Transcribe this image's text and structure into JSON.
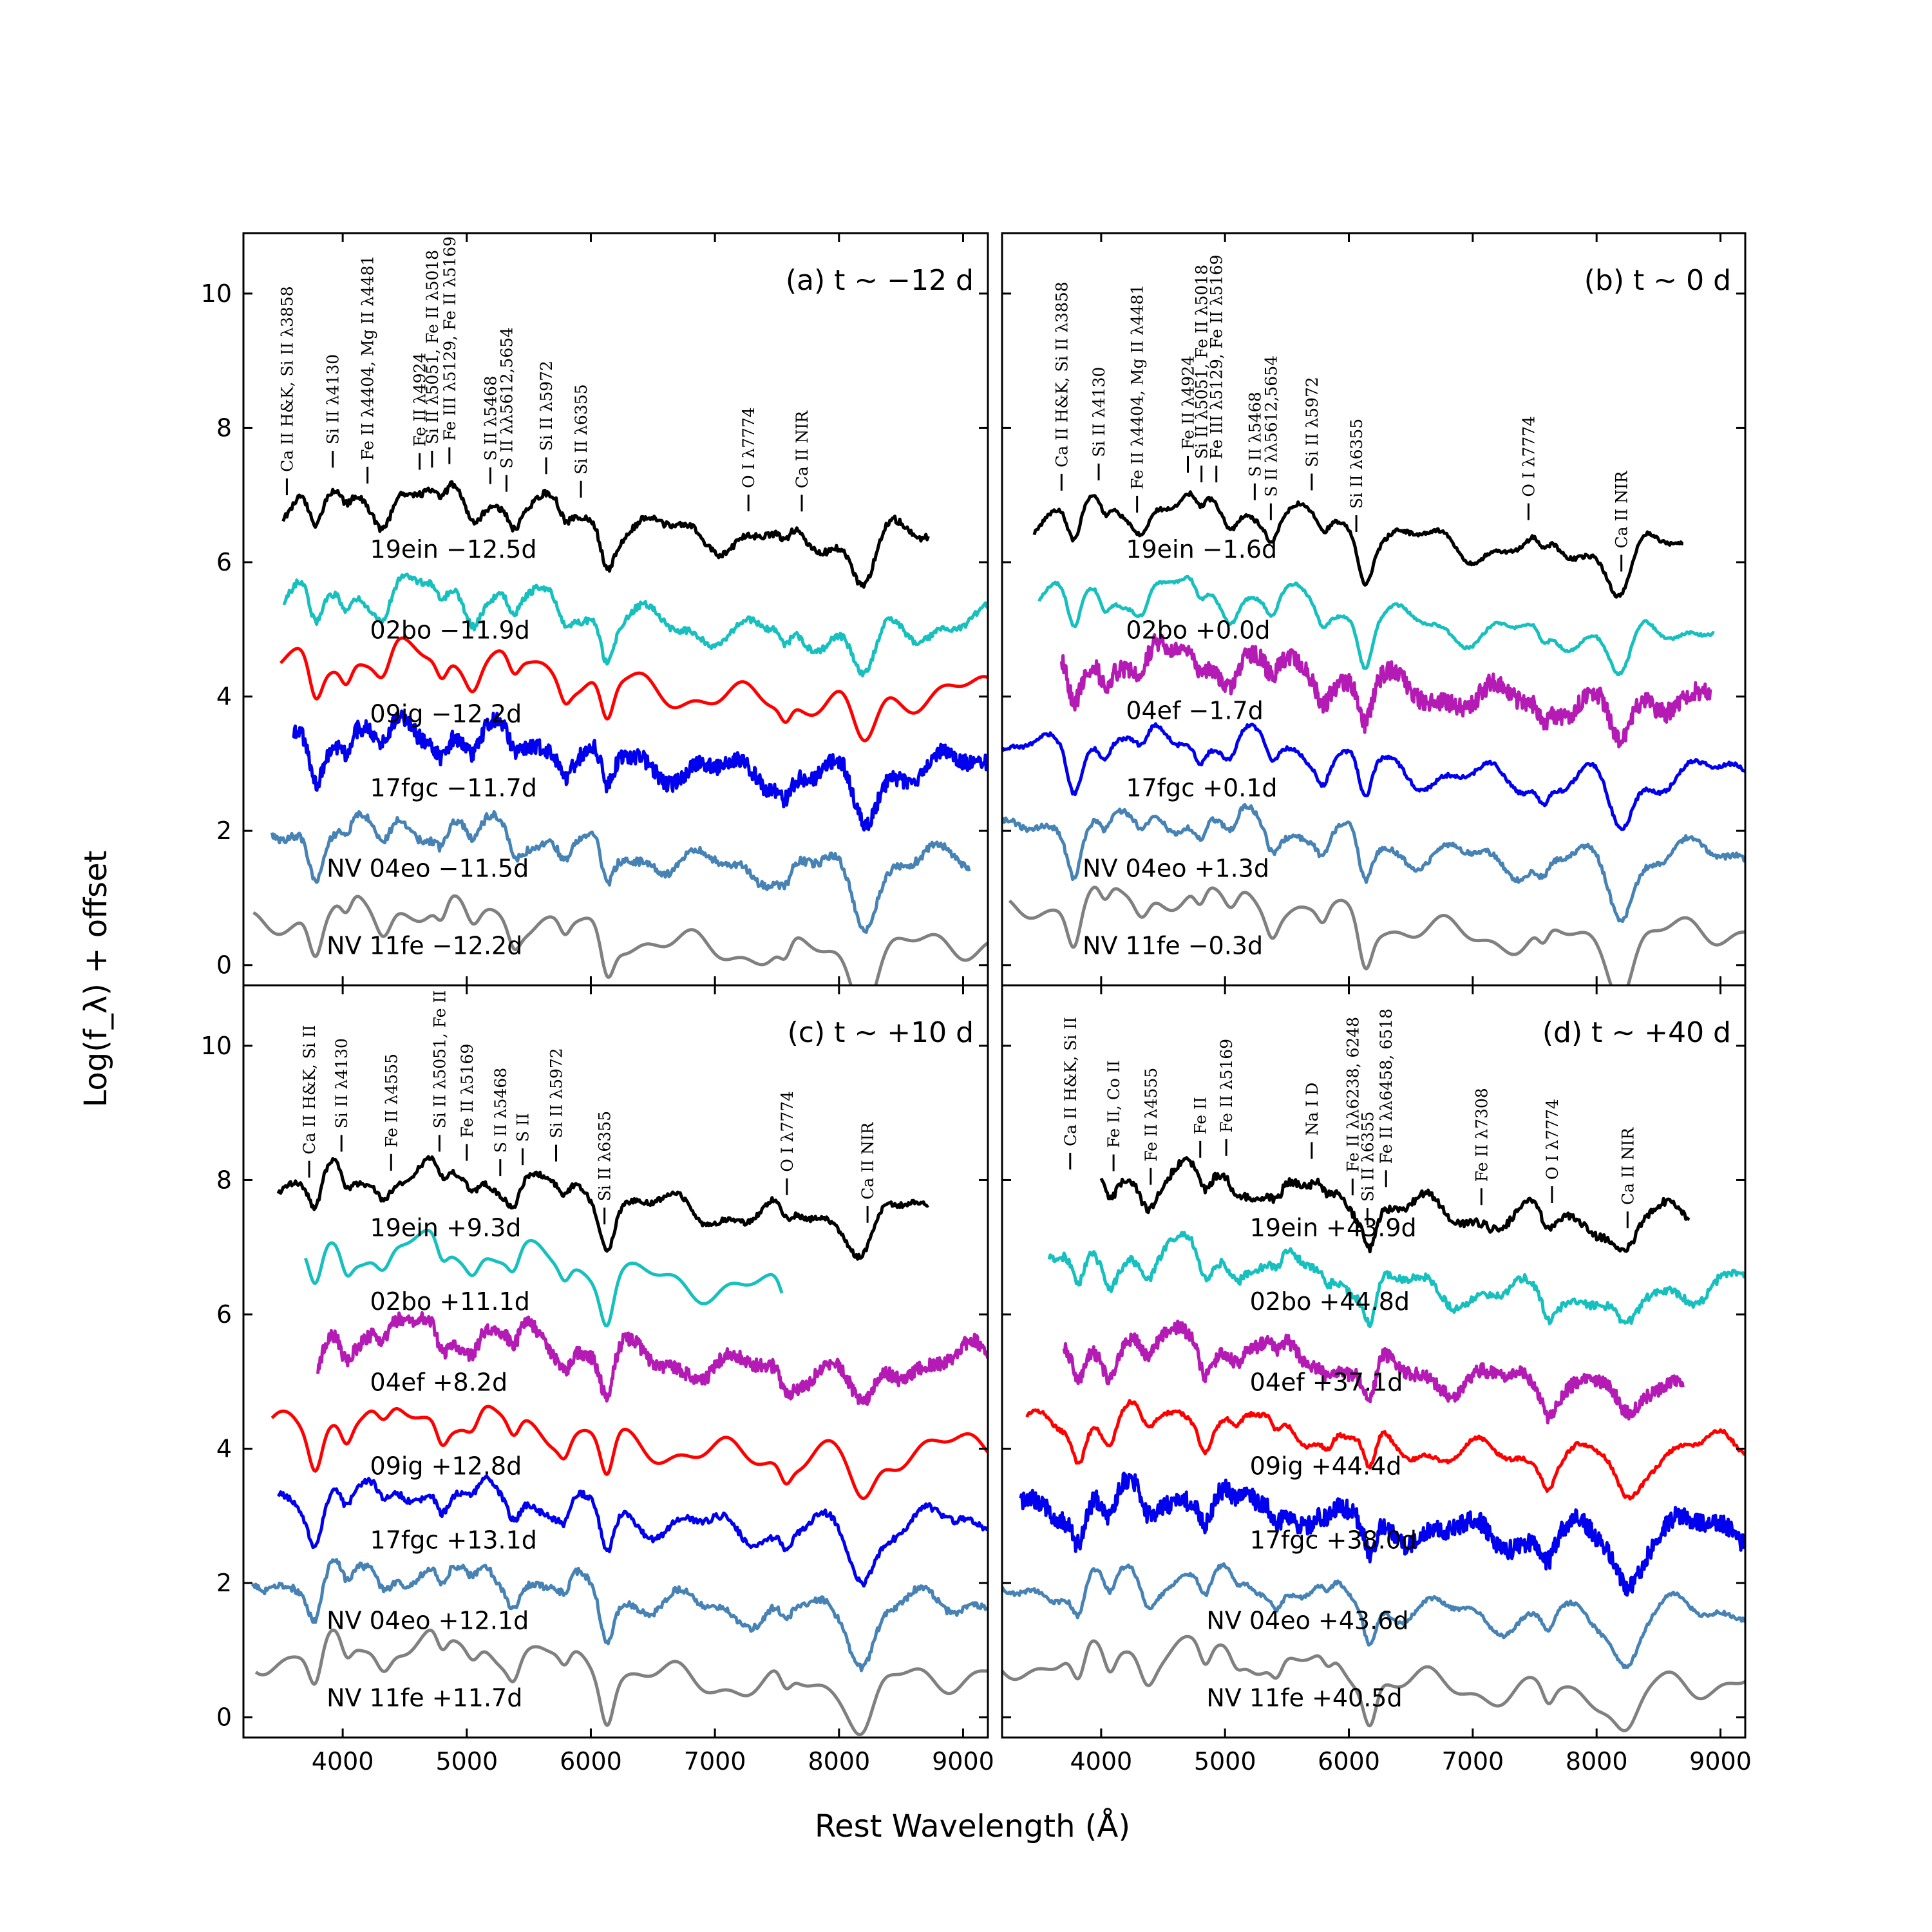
{
  "figure": {
    "ylabel": "Log(f_λ) + offset",
    "xlabel": "Rest Wavelength (Å)"
  },
  "chart_data": [
    {
      "type": "line",
      "title": "(a) t ∼ −12 d",
      "xlim": [
        3200,
        9200
      ],
      "ylim": [
        -0.3,
        10.9
      ],
      "xticks": [
        4000,
        5000,
        6000,
        7000,
        8000,
        9000
      ],
      "yticks": [
        0,
        2,
        4,
        6,
        8,
        10
      ],
      "series": [
        {
          "name": "19ein −12.5d",
          "color": "#000000",
          "xrange": [
            3520,
            8720
          ],
          "baseline": 6.7,
          "noise": 0.05,
          "label_pos": [
            4220,
            6.2
          ]
        },
        {
          "name": "02bo −11.9d",
          "color": "#17bfbf",
          "xrange": [
            3520,
            9200
          ],
          "baseline": 5.3,
          "noise": 0.05,
          "label_pos": [
            4220,
            5.0
          ]
        },
        {
          "name": "09ig −12.2d",
          "color": "#ff0000",
          "xrange": [
            3500,
            9200
          ],
          "baseline": 4.3,
          "noise": 0.0,
          "label_pos": [
            4220,
            3.75
          ]
        },
        {
          "name": "17fgc −11.7d",
          "color": "#0000ee",
          "xrange": [
            3600,
            9200
          ],
          "baseline": 3.2,
          "noise": 0.12,
          "label_pos": [
            4220,
            2.65
          ]
        },
        {
          "name": "NV 04eo −11.5d",
          "color": "#4682b4",
          "xrange": [
            3430,
            9050
          ],
          "baseline": 1.8,
          "noise": 0.06,
          "label_pos": [
            3870,
            1.45
          ]
        },
        {
          "name": "NV 11fe −12.2d",
          "color": "#808080",
          "xrange": [
            3280,
            9200
          ],
          "baseline": 0.55,
          "noise": 0.0,
          "label_pos": [
            3870,
            0.3
          ]
        }
      ],
      "line_marks": [
        {
          "label": "Ca II H&K, Si II λ3858",
          "x": 3550
        },
        {
          "label": "Si II λ4130",
          "x": 3920
        },
        {
          "label": "Fe II λ4404, Mg II λ4481",
          "x": 4200
        },
        {
          "label": "Fe II λ4924",
          "x": 4620
        },
        {
          "label": "Si II λ5051, Fe II λ5018",
          "x": 4720
        },
        {
          "label": "Fe III λ5129, Fe II λ5169",
          "x": 4860
        },
        {
          "label": "S II λ5468",
          "x": 5190
        },
        {
          "label": "S II λλ5612,5654",
          "x": 5320
        },
        {
          "label": "Si II λ5972",
          "x": 5640
        },
        {
          "label": "Si II λ6355",
          "x": 5920
        },
        {
          "label": "O I λ7774",
          "x": 7270
        },
        {
          "label": "Ca II NIR",
          "x": 7700
        }
      ]
    },
    {
      "type": "line",
      "title": "(b) t ∼ 0 d",
      "xlim": [
        3200,
        9200
      ],
      "ylim": [
        -0.3,
        10.9
      ],
      "xticks": [
        4000,
        5000,
        6000,
        7000,
        8000,
        9000
      ],
      "yticks": [
        0,
        2,
        4,
        6,
        8,
        10
      ],
      "series": [
        {
          "name": "19ein −1.6d",
          "color": "#000000",
          "xrange": [
            3460,
            8700
          ],
          "baseline": 6.55,
          "noise": 0.03,
          "label_pos": [
            4200,
            6.2
          ]
        },
        {
          "name": "02bo +0.0d",
          "color": "#17bfbf",
          "xrange": [
            3500,
            8950
          ],
          "baseline": 5.3,
          "noise": 0.02,
          "label_pos": [
            4200,
            5.0
          ]
        },
        {
          "name": "04ef −1.7d",
          "color": "#b41ab4",
          "xrange": [
            3680,
            8920
          ],
          "baseline": 4.3,
          "noise": 0.14,
          "label_pos": [
            4200,
            3.8
          ]
        },
        {
          "name": "17fgc +0.1d",
          "color": "#0000ee",
          "xrange": [
            3200,
            9200
          ],
          "baseline": 3.1,
          "noise": 0.03,
          "label_pos": [
            4200,
            2.65
          ]
        },
        {
          "name": "NV 04eo +1.3d",
          "color": "#4682b4",
          "xrange": [
            3200,
            9200
          ],
          "baseline": 1.9,
          "noise": 0.04,
          "label_pos": [
            3850,
            1.45
          ]
        },
        {
          "name": "NV 11fe −0.3d",
          "color": "#808080",
          "xrange": [
            3260,
            9200
          ],
          "baseline": 0.75,
          "noise": 0.0,
          "label_pos": [
            3850,
            0.3
          ]
        }
      ],
      "line_marks": [
        {
          "label": "Ca II H&K, Si II λ3858",
          "x": 3680
        },
        {
          "label": "Si II λ4130",
          "x": 3980
        },
        {
          "label": "Fe II λ4404, Mg II λ4481",
          "x": 4290
        },
        {
          "label": "Fe II λ4924",
          "x": 4700
        },
        {
          "label": "Si II λ5051, Fe II λ5018",
          "x": 4810
        },
        {
          "label": "Fe III λ5129, Fe II λ5169",
          "x": 4930
        },
        {
          "label": "S II λ5468",
          "x": 5240
        },
        {
          "label": "S II λλ5612,5654",
          "x": 5370
        },
        {
          "label": "Si II λ5972",
          "x": 5700
        },
        {
          "label": "Si II λ6355",
          "x": 6060
        },
        {
          "label": "O I λ7774",
          "x": 7450
        },
        {
          "label": "Ca II NIR",
          "x": 8200
        }
      ]
    },
    {
      "type": "line",
      "title": "(c) t ∼ +10 d",
      "xlim": [
        3200,
        9200
      ],
      "ylim": [
        -0.3,
        10.9
      ],
      "xticks": [
        4000,
        5000,
        6000,
        7000,
        8000,
        9000
      ],
      "yticks": [
        0,
        2,
        4,
        6,
        8,
        10
      ],
      "series": [
        {
          "name": "19ein +9.3d",
          "color": "#000000",
          "xrange": [
            3480,
            8720
          ],
          "baseline": 7.8,
          "noise": 0.04,
          "label_pos": [
            4220,
            7.3
          ]
        },
        {
          "name": "02bo +11.1d",
          "color": "#17bfbf",
          "xrange": [
            3700,
            7540
          ],
          "baseline": 6.7,
          "noise": 0.0,
          "label_pos": [
            4220,
            6.2
          ]
        },
        {
          "name": "04ef +8.2d",
          "color": "#b41ab4",
          "xrange": [
            3800,
            9200
          ],
          "baseline": 5.5,
          "noise": 0.1,
          "label_pos": [
            4220,
            5.0
          ]
        },
        {
          "name": "09ig +12.8d",
          "color": "#ff0000",
          "xrange": [
            3430,
            9200
          ],
          "baseline": 4.2,
          "noise": 0.0,
          "label_pos": [
            4220,
            3.75
          ]
        },
        {
          "name": "17fgc +13.1d",
          "color": "#0000ee",
          "xrange": [
            3480,
            9200
          ],
          "baseline": 3.1,
          "noise": 0.05,
          "label_pos": [
            4220,
            2.65
          ]
        },
        {
          "name": "NV 04eo +12.1d",
          "color": "#4682b4",
          "xrange": [
            3270,
            9200
          ],
          "baseline": 1.9,
          "noise": 0.05,
          "label_pos": [
            3870,
            1.45
          ]
        },
        {
          "name": "NV 11fe +11.7d",
          "color": "#808080",
          "xrange": [
            3300,
            9200
          ],
          "baseline": 0.8,
          "noise": 0.0,
          "label_pos": [
            3870,
            0.3
          ]
        }
      ],
      "line_marks": [
        {
          "label": "Ca II H&K, Si II",
          "x": 3730
        },
        {
          "label": "Si II λ4130",
          "x": 3990
        },
        {
          "label": "Fe II λ4555",
          "x": 4390
        },
        {
          "label": "Si II λ5051, Fe II",
          "x": 4780
        },
        {
          "label": "Fe II λ5169",
          "x": 5000
        },
        {
          "label": "S II λ5468",
          "x": 5270
        },
        {
          "label": "S II",
          "x": 5450
        },
        {
          "label": "Si II λ5972",
          "x": 5720
        },
        {
          "label": "Si II λ6355",
          "x": 6110
        },
        {
          "label": "O I λ7774",
          "x": 7580
        },
        {
          "label": "Ca II NIR",
          "x": 8230
        }
      ]
    },
    {
      "type": "line",
      "title": "(d) t ∼ +40 d",
      "xlim": [
        3200,
        9200
      ],
      "ylim": [
        -0.3,
        10.9
      ],
      "xticks": [
        4000,
        5000,
        6000,
        7000,
        8000,
        9000
      ],
      "yticks": [
        0,
        2,
        4,
        6,
        8,
        10
      ],
      "series": [
        {
          "name": "19ein +43.9d",
          "color": "#000000",
          "xrange": [
            4000,
            8750
          ],
          "baseline": 7.75,
          "noise": 0.06,
          "label_pos": [
            5200,
            7.3
          ]
        },
        {
          "name": "02bo +44.8d",
          "color": "#17bfbf",
          "xrange": [
            3580,
            9200
          ],
          "baseline": 6.6,
          "noise": 0.06,
          "label_pos": [
            5200,
            6.2
          ]
        },
        {
          "name": "04ef +37.1d",
          "color": "#b41ab4",
          "xrange": [
            3700,
            8700
          ],
          "baseline": 5.3,
          "noise": 0.1,
          "label_pos": [
            5200,
            5.0
          ]
        },
        {
          "name": "09ig +44.4d",
          "color": "#ff0000",
          "xrange": [
            3400,
            9200
          ],
          "baseline": 4.2,
          "noise": 0.03,
          "label_pos": [
            5200,
            3.75
          ]
        },
        {
          "name": "17fgc +38.0d",
          "color": "#0000ee",
          "xrange": [
            3350,
            9200
          ],
          "baseline": 3.0,
          "noise": 0.14,
          "label_pos": [
            5200,
            2.65
          ]
        },
        {
          "name": "NV 04eo +43.6d",
          "color": "#4682b4",
          "xrange": [
            3200,
            9200
          ],
          "baseline": 1.8,
          "noise": 0.03,
          "label_pos": [
            4850,
            1.45
          ]
        },
        {
          "name": "NV 11fe +40.5d",
          "color": "#808080",
          "xrange": [
            3200,
            9200
          ],
          "baseline": 0.7,
          "noise": 0.0,
          "label_pos": [
            4850,
            0.3
          ]
        }
      ],
      "line_marks": [
        {
          "label": "Ca II H&K, Si II",
          "x": 3750
        },
        {
          "label": "Fe II, Co II",
          "x": 4100
        },
        {
          "label": "Fe II λ4555",
          "x": 4400
        },
        {
          "label": "Fe II",
          "x": 4800
        },
        {
          "label": "Fe II λ5169",
          "x": 5010
        },
        {
          "label": "Na I D",
          "x": 5700
        },
        {
          "label": "Fe II λλ6238, 6248",
          "x": 6030
        },
        {
          "label": "Si II λ6355",
          "x": 6150
        },
        {
          "label": "Fe II λλ6458, 6518",
          "x": 6300
        },
        {
          "label": "Fe II λ7308",
          "x": 7070
        },
        {
          "label": "O I λ7774",
          "x": 7640
        },
        {
          "label": "Ca II NIR",
          "x": 8250
        }
      ]
    }
  ]
}
